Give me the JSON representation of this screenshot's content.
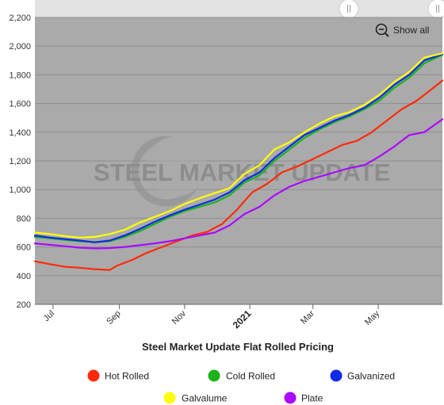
{
  "chart_data": {
    "type": "line",
    "title": "Steel Market Update Flat Rolled Pricing",
    "xlabel": "",
    "ylabel": "",
    "ylim": [
      200,
      2200
    ],
    "y_ticks": [
      200,
      400,
      600,
      800,
      1000,
      1200,
      1400,
      1600,
      1800,
      2000,
      2200
    ],
    "y_tick_labels": [
      "200",
      "400",
      "600",
      "800",
      "1,000",
      "1,200",
      "1,400",
      "1,600",
      "1,800",
      "2,000",
      "2,200"
    ],
    "x_range": [
      "2020-06-14",
      "2021-06-30"
    ],
    "x_ticks": [
      {
        "date": "2020-07-01",
        "label": "Jul",
        "bold": false
      },
      {
        "date": "2020-09-01",
        "label": "Sep",
        "bold": false
      },
      {
        "date": "2020-11-01",
        "label": "Nov",
        "bold": false
      },
      {
        "date": "2021-01-01",
        "label": "2021",
        "bold": true
      },
      {
        "date": "2021-03-01",
        "label": "Mar",
        "bold": false
      },
      {
        "date": "2021-05-01",
        "label": "May",
        "bold": false
      }
    ],
    "watermark": "STEEL MARKET UPDATE",
    "legend_position": "bottom",
    "grid": true,
    "series": [
      {
        "name": "Hot Rolled",
        "color": "#ff2a0a",
        "points": [
          [
            "2020-06-14",
            500
          ],
          [
            "2020-06-28",
            480
          ],
          [
            "2020-07-12",
            462
          ],
          [
            "2020-07-26",
            455
          ],
          [
            "2020-08-09",
            445
          ],
          [
            "2020-08-23",
            440
          ],
          [
            "2020-08-30",
            470
          ],
          [
            "2020-09-13",
            510
          ],
          [
            "2020-09-27",
            560
          ],
          [
            "2020-10-11",
            600
          ],
          [
            "2020-10-25",
            640
          ],
          [
            "2020-11-08",
            680
          ],
          [
            "2020-11-22",
            705
          ],
          [
            "2020-12-06",
            760
          ],
          [
            "2020-12-20",
            860
          ],
          [
            "2021-01-03",
            980
          ],
          [
            "2021-01-17",
            1040
          ],
          [
            "2021-01-31",
            1120
          ],
          [
            "2021-02-14",
            1160
          ],
          [
            "2021-02-28",
            1210
          ],
          [
            "2021-03-14",
            1260
          ],
          [
            "2021-03-28",
            1310
          ],
          [
            "2021-04-11",
            1340
          ],
          [
            "2021-04-25",
            1400
          ],
          [
            "2021-05-09",
            1480
          ],
          [
            "2021-05-23",
            1560
          ],
          [
            "2021-06-06",
            1620
          ],
          [
            "2021-06-20",
            1700
          ],
          [
            "2021-06-30",
            1760
          ]
        ]
      },
      {
        "name": "Cold Rolled",
        "color": "#1ab41a",
        "points": [
          [
            "2020-06-14",
            670
          ],
          [
            "2020-06-28",
            660
          ],
          [
            "2020-07-12",
            650
          ],
          [
            "2020-07-26",
            640
          ],
          [
            "2020-08-09",
            635
          ],
          [
            "2020-08-23",
            640
          ],
          [
            "2020-09-06",
            670
          ],
          [
            "2020-09-20",
            710
          ],
          [
            "2020-10-04",
            760
          ],
          [
            "2020-10-18",
            810
          ],
          [
            "2020-11-01",
            850
          ],
          [
            "2020-11-15",
            880
          ],
          [
            "2020-11-29",
            910
          ],
          [
            "2020-12-13",
            960
          ],
          [
            "2020-12-27",
            1050
          ],
          [
            "2021-01-10",
            1100
          ],
          [
            "2021-01-24",
            1200
          ],
          [
            "2021-02-07",
            1280
          ],
          [
            "2021-02-21",
            1360
          ],
          [
            "2021-03-07",
            1420
          ],
          [
            "2021-03-21",
            1470
          ],
          [
            "2021-04-04",
            1510
          ],
          [
            "2021-04-18",
            1560
          ],
          [
            "2021-05-02",
            1620
          ],
          [
            "2021-05-16",
            1710
          ],
          [
            "2021-05-30",
            1780
          ],
          [
            "2021-06-13",
            1880
          ],
          [
            "2021-06-30",
            1940
          ]
        ]
      },
      {
        "name": "Galvanized",
        "color": "#0f2be6",
        "points": [
          [
            "2020-06-14",
            680
          ],
          [
            "2020-06-28",
            665
          ],
          [
            "2020-07-12",
            655
          ],
          [
            "2020-07-26",
            645
          ],
          [
            "2020-08-09",
            632
          ],
          [
            "2020-08-23",
            645
          ],
          [
            "2020-09-06",
            680
          ],
          [
            "2020-09-20",
            725
          ],
          [
            "2020-10-04",
            775
          ],
          [
            "2020-10-18",
            820
          ],
          [
            "2020-11-01",
            860
          ],
          [
            "2020-11-15",
            895
          ],
          [
            "2020-11-29",
            930
          ],
          [
            "2020-12-13",
            980
          ],
          [
            "2020-12-27",
            1065
          ],
          [
            "2021-01-10",
            1120
          ],
          [
            "2021-01-24",
            1220
          ],
          [
            "2021-02-07",
            1300
          ],
          [
            "2021-02-21",
            1380
          ],
          [
            "2021-03-07",
            1430
          ],
          [
            "2021-03-21",
            1480
          ],
          [
            "2021-04-04",
            1520
          ],
          [
            "2021-04-18",
            1570
          ],
          [
            "2021-05-02",
            1640
          ],
          [
            "2021-05-16",
            1730
          ],
          [
            "2021-05-30",
            1800
          ],
          [
            "2021-06-13",
            1900
          ],
          [
            "2021-06-30",
            1945
          ]
        ]
      },
      {
        "name": "Galvalume",
        "color": "#ffff0a",
        "points": [
          [
            "2020-06-14",
            700
          ],
          [
            "2020-06-28",
            690
          ],
          [
            "2020-07-12",
            675
          ],
          [
            "2020-07-26",
            665
          ],
          [
            "2020-08-09",
            670
          ],
          [
            "2020-08-23",
            690
          ],
          [
            "2020-09-06",
            720
          ],
          [
            "2020-09-20",
            770
          ],
          [
            "2020-10-04",
            810
          ],
          [
            "2020-10-18",
            850
          ],
          [
            "2020-11-01",
            900
          ],
          [
            "2020-11-15",
            940
          ],
          [
            "2020-11-29",
            975
          ],
          [
            "2020-12-13",
            1010
          ],
          [
            "2020-12-27",
            1110
          ],
          [
            "2021-01-10",
            1170
          ],
          [
            "2021-01-24",
            1280
          ],
          [
            "2021-02-07",
            1330
          ],
          [
            "2021-02-21",
            1400
          ],
          [
            "2021-03-07",
            1460
          ],
          [
            "2021-03-21",
            1510
          ],
          [
            "2021-04-04",
            1540
          ],
          [
            "2021-04-18",
            1590
          ],
          [
            "2021-05-02",
            1660
          ],
          [
            "2021-05-16",
            1750
          ],
          [
            "2021-05-30",
            1820
          ],
          [
            "2021-06-13",
            1920
          ],
          [
            "2021-06-30",
            1950
          ]
        ]
      },
      {
        "name": "Plate",
        "color": "#aa0aff",
        "points": [
          [
            "2020-06-14",
            625
          ],
          [
            "2020-06-28",
            615
          ],
          [
            "2020-07-12",
            605
          ],
          [
            "2020-07-26",
            595
          ],
          [
            "2020-08-09",
            590
          ],
          [
            "2020-08-23",
            592
          ],
          [
            "2020-09-06",
            600
          ],
          [
            "2020-09-20",
            612
          ],
          [
            "2020-10-04",
            625
          ],
          [
            "2020-10-18",
            640
          ],
          [
            "2020-11-01",
            660
          ],
          [
            "2020-11-15",
            680
          ],
          [
            "2020-11-29",
            700
          ],
          [
            "2020-12-13",
            750
          ],
          [
            "2020-12-27",
            830
          ],
          [
            "2021-01-10",
            880
          ],
          [
            "2021-01-24",
            960
          ],
          [
            "2021-02-07",
            1020
          ],
          [
            "2021-02-21",
            1060
          ],
          [
            "2021-03-07",
            1090
          ],
          [
            "2021-03-21",
            1120
          ],
          [
            "2021-04-04",
            1150
          ],
          [
            "2021-04-18",
            1170
          ],
          [
            "2021-05-02",
            1230
          ],
          [
            "2021-05-16",
            1300
          ],
          [
            "2021-05-30",
            1380
          ],
          [
            "2021-06-13",
            1400
          ],
          [
            "2021-06-30",
            1490
          ]
        ]
      }
    ]
  },
  "controls": {
    "show_all_label": "Show all",
    "zoom_icon": "zoom-out-icon",
    "handle_icon": "grip-icon"
  }
}
